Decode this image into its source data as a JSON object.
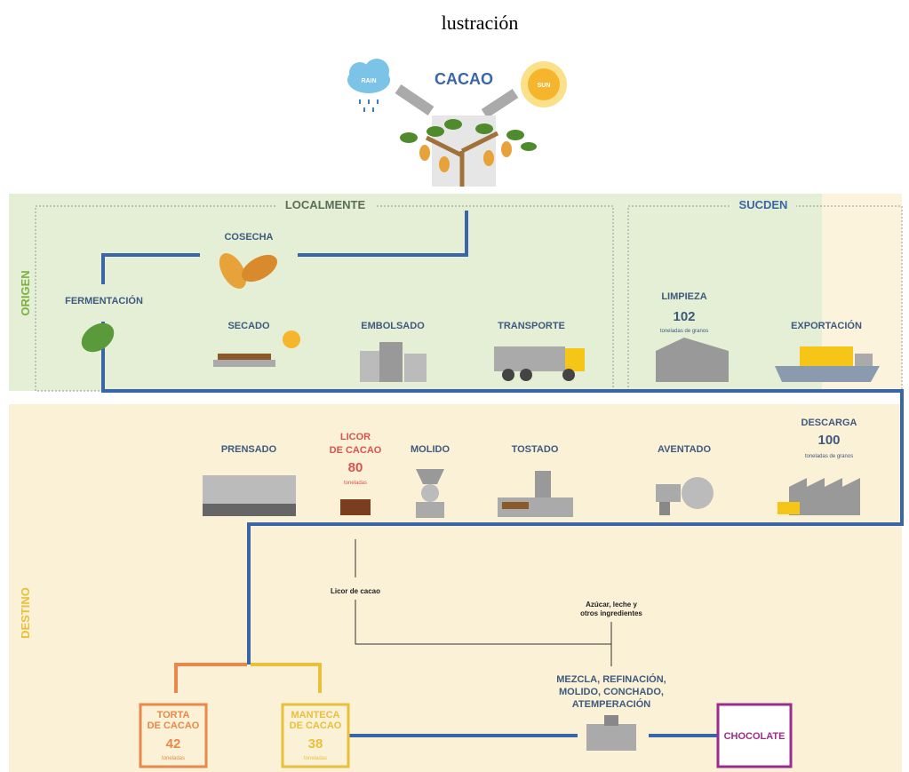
{
  "header": {
    "title": "lustración"
  },
  "top": {
    "title": "CACAO",
    "rain": "RAIN",
    "sun": "SUN"
  },
  "origin": {
    "label": "ORIGEN",
    "local": {
      "title": "LOCALMENTE",
      "steps": [
        {
          "label": "COSECHA"
        },
        {
          "label": "FERMENTACIÓN"
        },
        {
          "label": "SECADO"
        },
        {
          "label": "EMBOLSADO"
        },
        {
          "label": "TRANSPORTE"
        }
      ]
    },
    "sucden": {
      "title": "SUCDEN",
      "steps": [
        {
          "label": "LIMPIEZA",
          "amount": "102",
          "unit": "toneladas de granos"
        },
        {
          "label": "EXPORTACIÓN"
        }
      ]
    }
  },
  "destination": {
    "label": "DESTINO",
    "steps": [
      {
        "label": "DESCARGA",
        "amount": "100",
        "unit": "toneladas de granos"
      },
      {
        "label": "AVENTADO"
      },
      {
        "label": "TOSTADO"
      },
      {
        "label": "MOLIDO"
      },
      {
        "label_lines": [
          "LICOR",
          "DE CACAO"
        ],
        "amount": "80",
        "unit": "toneladas"
      },
      {
        "label": "PRENSADO"
      }
    ],
    "flow_labels": {
      "liquor": "Licor de cacao",
      "ingredients": [
        "Azúcar, leche y",
        "otros ingredientes"
      ]
    },
    "process": [
      "MEZCLA, REFINACIÓN,",
      "MOLIDO, CONCHADO,",
      "ATEMPERACIÓN"
    ],
    "products": [
      {
        "label_lines": [
          "TORTA",
          "DE CACAO"
        ],
        "amount": "42",
        "unit": "toneladas"
      },
      {
        "label_lines": [
          "MANTECA",
          "DE CACAO"
        ],
        "amount": "38",
        "unit": "toneladas"
      },
      {
        "label": "CHOCOLATE"
      }
    ]
  }
}
